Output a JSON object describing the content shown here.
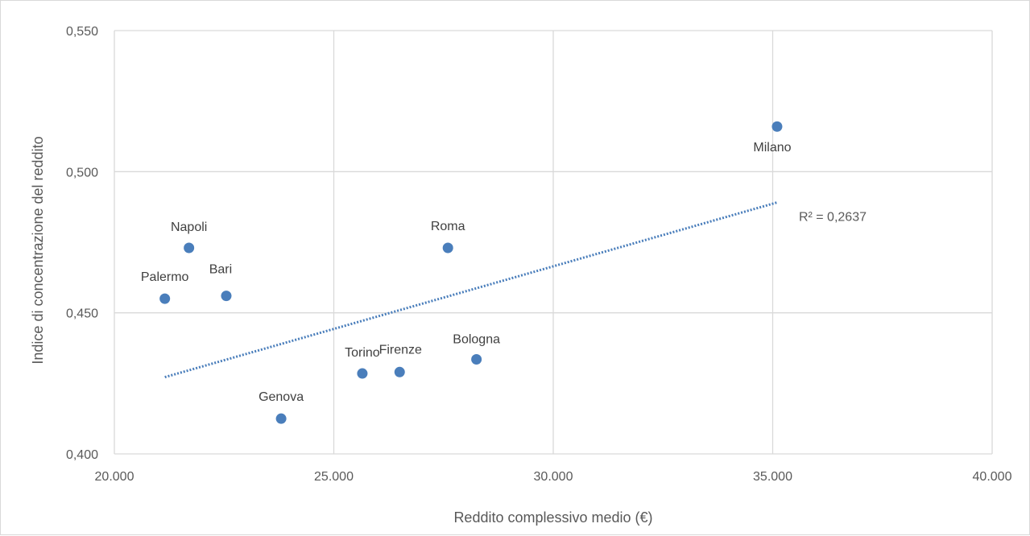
{
  "chart_data": {
    "type": "scatter",
    "title": "",
    "xlabel": "Reddito complessivo medio (€)",
    "ylabel": "Indice di concentrazione del reddito",
    "xlim": [
      20000,
      40000
    ],
    "ylim": [
      0.4,
      0.55
    ],
    "x_ticks": [
      20000,
      25000,
      30000,
      35000,
      40000
    ],
    "x_tick_labels": [
      "20.000",
      "25.000",
      "30.000",
      "35.000",
      "40.000"
    ],
    "y_ticks": [
      0.4,
      0.45,
      0.5,
      0.55
    ],
    "y_tick_labels": [
      "0,400",
      "0,450",
      "0,500",
      "0,550"
    ],
    "grid": true,
    "point_color": "#4a7ebb",
    "trendline_color": "#4a7ebb",
    "points": [
      {
        "label": "Milano",
        "x": 35100,
        "y": 0.516
      },
      {
        "label": "Roma",
        "x": 27600,
        "y": 0.473
      },
      {
        "label": "Napoli",
        "x": 21700,
        "y": 0.473
      },
      {
        "label": "Palermo",
        "x": 21150,
        "y": 0.455
      },
      {
        "label": "Bari",
        "x": 22550,
        "y": 0.456
      },
      {
        "label": "Bologna",
        "x": 28250,
        "y": 0.4335
      },
      {
        "label": "Firenze",
        "x": 26500,
        "y": 0.429
      },
      {
        "label": "Torino",
        "x": 25650,
        "y": 0.4285
      },
      {
        "label": "Genova",
        "x": 23800,
        "y": 0.4125
      }
    ],
    "trendline": {
      "type": "linear",
      "style": "dotted",
      "x_range": [
        21150,
        35100
      ],
      "y_range": [
        0.4272,
        0.4891
      ],
      "annotation": "R² = 0,2637"
    }
  }
}
